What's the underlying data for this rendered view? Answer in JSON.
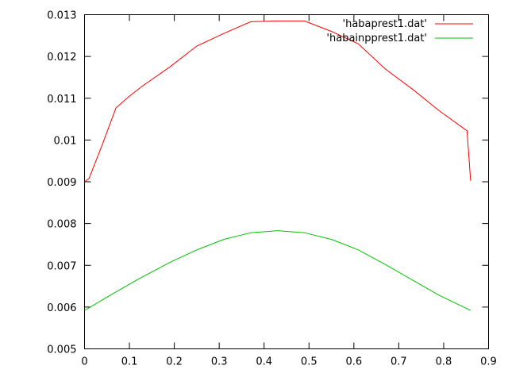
{
  "chart_data": {
    "type": "line",
    "title": "",
    "xlabel": "",
    "ylabel": "",
    "xlim": [
      0,
      0.9
    ],
    "ylim": [
      0.005,
      0.013
    ],
    "x_ticks": [
      0,
      0.1,
      0.2,
      0.3,
      0.4,
      0.5,
      0.6,
      0.7,
      0.8,
      0.9
    ],
    "x_tick_labels": [
      "0",
      "0.1",
      "0.2",
      "0.3",
      "0.4",
      "0.5",
      "0.6",
      "0.7",
      "0.8",
      "0.9"
    ],
    "y_ticks": [
      0.005,
      0.006,
      0.007,
      0.008,
      0.009,
      0.01,
      0.011,
      0.012,
      0.013
    ],
    "y_tick_labels": [
      "0.005",
      "0.006",
      "0.007",
      "0.008",
      "0.009",
      "0.01",
      "0.011",
      "0.012",
      "0.013"
    ],
    "grid": false,
    "legend_position": "top-right",
    "series": [
      {
        "name": "'habaprest1.dat'",
        "color": "#ff0000",
        "x": [
          0.0,
          0.01,
          0.04,
          0.07,
          0.1,
          0.13,
          0.19,
          0.25,
          0.31,
          0.37,
          0.43,
          0.49,
          0.55,
          0.61,
          0.67,
          0.73,
          0.79,
          0.852,
          0.86
        ],
        "y": [
          0.009,
          0.00908,
          0.0099,
          0.01077,
          0.01105,
          0.0113,
          0.01175,
          0.01225,
          0.01255,
          0.01283,
          0.01285,
          0.01285,
          0.0126,
          0.0123,
          0.0117,
          0.01122,
          0.0107,
          0.01022,
          0.00902
        ]
      },
      {
        "name": "'habainpprest1.dat'",
        "color": "#00c000",
        "x": [
          0.0,
          0.06,
          0.12,
          0.19,
          0.25,
          0.31,
          0.37,
          0.43,
          0.49,
          0.55,
          0.61,
          0.67,
          0.73,
          0.79,
          0.86
        ],
        "y": [
          0.00592,
          0.0063,
          0.00667,
          0.00707,
          0.00737,
          0.00762,
          0.00778,
          0.00783,
          0.00778,
          0.00762,
          0.00737,
          0.00702,
          0.00665,
          0.00628,
          0.00592
        ]
      }
    ]
  }
}
